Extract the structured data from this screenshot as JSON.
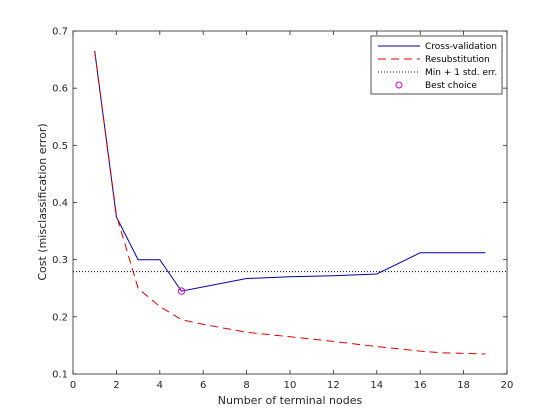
{
  "chart_data": {
    "type": "line",
    "xlabel": "Number of terminal nodes",
    "ylabel": "Cost (misclassification error)",
    "xlim": [
      0,
      20
    ],
    "ylim": [
      0.1,
      0.7
    ],
    "xticks": [
      "0",
      "2",
      "4",
      "6",
      "8",
      "10",
      "12",
      "14",
      "16",
      "18",
      "20"
    ],
    "yticks": [
      "0.1",
      "0.2",
      "0.3",
      "0.4",
      "0.5",
      "0.6",
      "0.7"
    ],
    "grid": false,
    "legend_position": "top-right",
    "series": [
      {
        "name": "Cross-validation",
        "style": "solid",
        "color": "#0000aa",
        "x": [
          1,
          2,
          3,
          4,
          5,
          8,
          10,
          12,
          14,
          16,
          19
        ],
        "y": [
          0.665,
          0.375,
          0.3,
          0.3,
          0.245,
          0.267,
          0.27,
          0.272,
          0.275,
          0.312,
          0.312
        ]
      },
      {
        "name": "Resubstitution",
        "style": "dashed",
        "color": "#dd0000",
        "x": [
          1,
          2,
          3,
          4,
          5,
          6,
          8,
          10,
          12,
          14,
          16,
          17,
          19
        ],
        "y": [
          0.665,
          0.378,
          0.25,
          0.218,
          0.195,
          0.187,
          0.173,
          0.165,
          0.157,
          0.148,
          0.14,
          0.137,
          0.135
        ]
      },
      {
        "name": "Min + 1 std. err.",
        "style": "dotted",
        "color": "#000000",
        "y_value": 0.279
      },
      {
        "name": "Best choice",
        "style": "marker",
        "color": "#cc00cc",
        "x": [
          5
        ],
        "y": [
          0.245
        ]
      }
    ]
  }
}
